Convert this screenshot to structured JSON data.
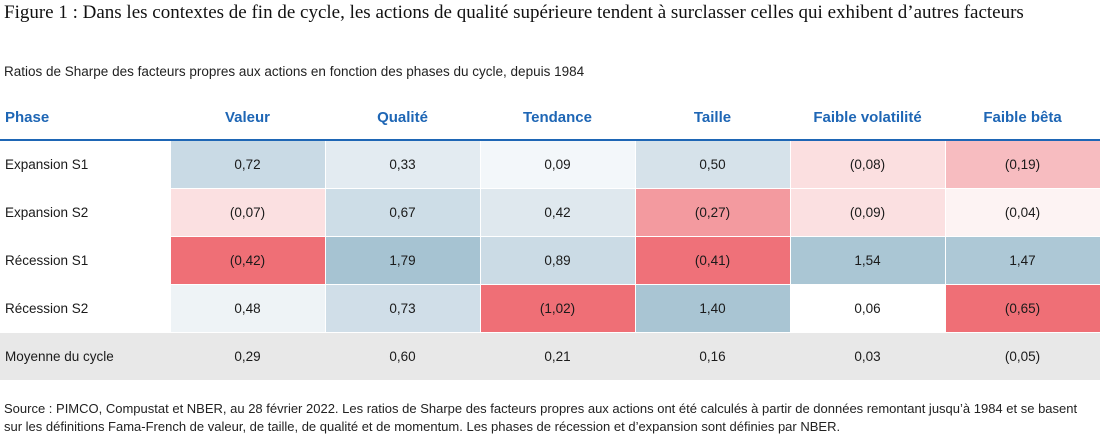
{
  "title": "Figure 1 : Dans les contextes de fin de cycle, les actions de qualité supérieure tendent à surclasser celles qui exhibent d’autres facteurs",
  "subtitle": "Ratios de Sharpe des facteurs propres aux actions en fonction des phases du cycle, depuis 1984",
  "table": {
    "headers": [
      "Phase",
      "Valeur",
      "Qualité",
      "Tendance",
      "Taille",
      "Faible volatilité",
      "Faible bêta"
    ],
    "rows": [
      {
        "phase": "Expansion S1",
        "cells": [
          {
            "value": "0,72",
            "color": "#c9dae5"
          },
          {
            "value": "0,33",
            "color": "#e3ebf1"
          },
          {
            "value": "0,09",
            "color": "#f3f7fa"
          },
          {
            "value": "0,50",
            "color": "#d6e2ea"
          },
          {
            "value": "(0,08)",
            "color": "#fbdfe0"
          },
          {
            "value": "(0,19)",
            "color": "#f7bcc0"
          }
        ]
      },
      {
        "phase": "Expansion S2",
        "cells": [
          {
            "value": "(0,07)",
            "color": "#fbe0e1"
          },
          {
            "value": "0,67",
            "color": "#cddde7"
          },
          {
            "value": "0,42",
            "color": "#dfe8ee"
          },
          {
            "value": "(0,27)",
            "color": "#f39a9f"
          },
          {
            "value": "(0,09)",
            "color": "#fbe0e1"
          },
          {
            "value": "(0,04)",
            "color": "#fdf3f3"
          }
        ]
      },
      {
        "phase": "Récession S1",
        "cells": [
          {
            "value": "(0,42)",
            "color": "#ef6f76"
          },
          {
            "value": "1,79",
            "color": "#a6c3d2"
          },
          {
            "value": "0,89",
            "color": "#cbdbe5"
          },
          {
            "value": "(0,41)",
            "color": "#ef7179"
          },
          {
            "value": "1,54",
            "color": "#aac6d4"
          },
          {
            "value": "1,47",
            "color": "#adc8d6"
          }
        ]
      },
      {
        "phase": "Récession S2",
        "cells": [
          {
            "value": "0,48",
            "color": "#eef3f6"
          },
          {
            "value": "0,73",
            "color": "#d0dee8"
          },
          {
            "value": "(1,02)",
            "color": "#ef6f76"
          },
          {
            "value": "1,40",
            "color": "#a9c5d3"
          },
          {
            "value": "0,06",
            "color": "#ffffff"
          },
          {
            "value": "(0,65)",
            "color": "#ef6f76"
          }
        ]
      }
    ],
    "average": {
      "phase": "Moyenne du cycle",
      "values": [
        "0,29",
        "0,60",
        "0,21",
        "0,16",
        "0,03",
        "(0,05)"
      ]
    }
  },
  "source": "Source : PIMCO, Compustat et NBER, au 28 février 2022. Les ratios de Sharpe des facteurs propres aux actions ont été calculés à partir de données remontant jusqu’à 1984 et se basent sur les définitions Fama-French de valeur, de taille, de qualité et de momentum. Les phases de récession et d’expansion sont définies par NBER."
}
